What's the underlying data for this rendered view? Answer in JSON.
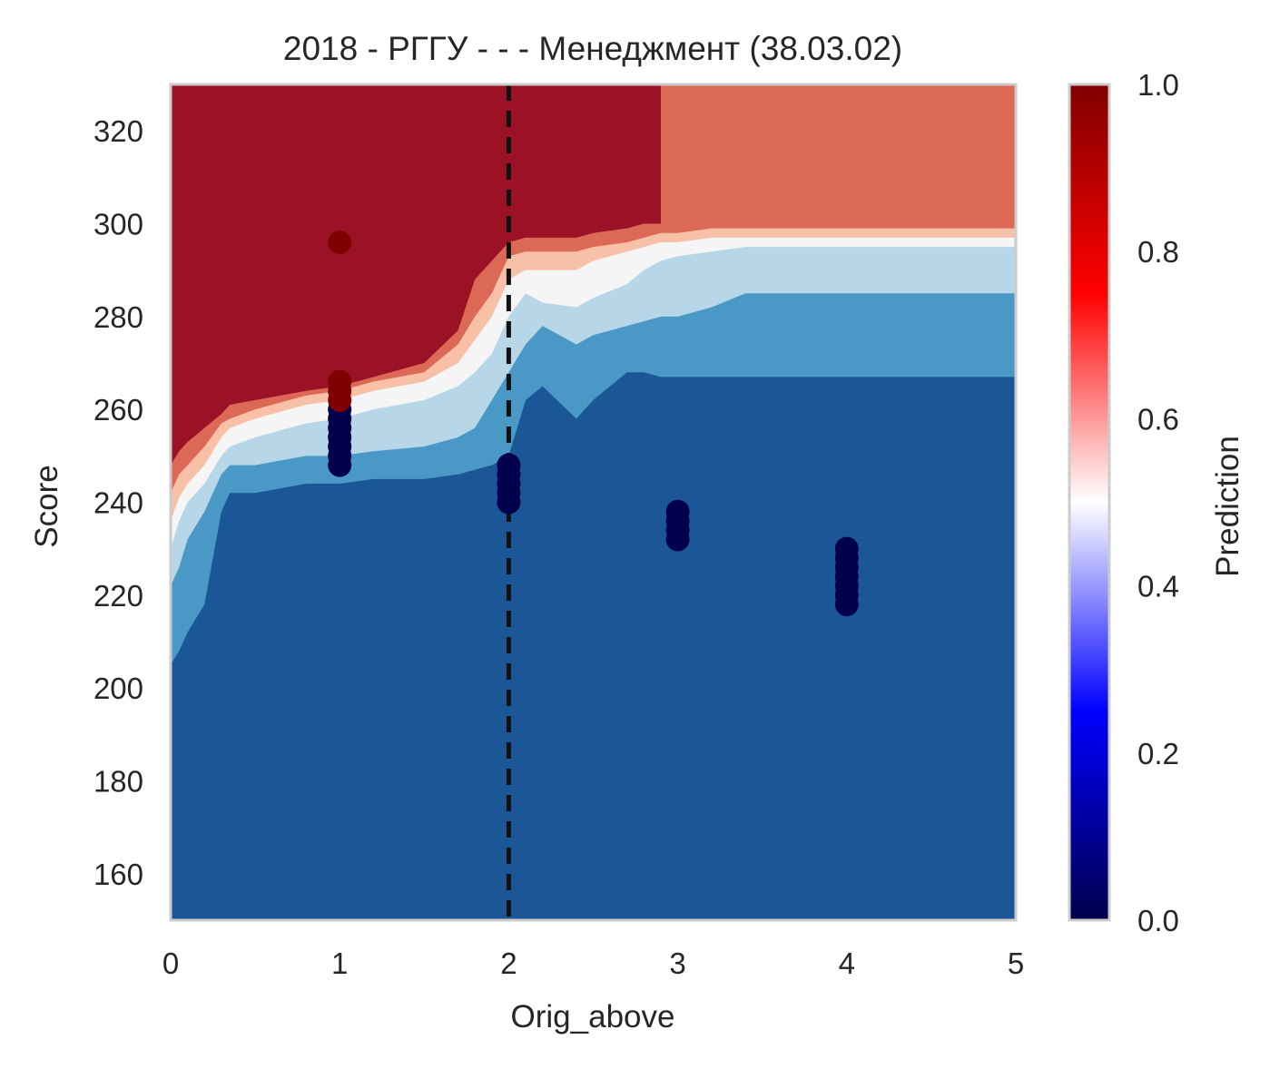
{
  "chart_data": {
    "type": "contour",
    "title": "2018 - РГГУ - - - Менеджмент (38.03.02)",
    "xlabel": "Orig_above",
    "ylabel": "Score",
    "xlim": [
      0,
      5
    ],
    "ylim": [
      150,
      330
    ],
    "x_ticks": [
      0,
      1,
      2,
      3,
      4,
      5
    ],
    "y_ticks": [
      160,
      180,
      200,
      220,
      240,
      260,
      280,
      300,
      320
    ],
    "grid": false,
    "colorbar": {
      "label": "Prediction",
      "range": [
        0,
        1
      ],
      "ticks": [
        "0.0",
        "0.2",
        "0.4",
        "0.6",
        "0.8",
        "1.0"
      ],
      "colormap": "seismic"
    },
    "cutoff_line": {
      "x": 2,
      "style": "dashed",
      "color": "#111111"
    },
    "contour_levels": [
      {
        "level": "0.0-0.15",
        "color": "#1b5796"
      },
      {
        "level": "0.15-0.3",
        "color": "#4a98c5"
      },
      {
        "level": "0.3-0.45",
        "color": "#b7d6e8"
      },
      {
        "level": "0.45-0.55",
        "color": "#f5f5f5"
      },
      {
        "level": "0.55-0.7",
        "color": "#f8c0a6"
      },
      {
        "level": "0.7-0.85",
        "color": "#dc6955"
      },
      {
        "level": "0.85-1.0",
        "color": "#9b1227"
      }
    ],
    "contour_boundaries": {
      "x": [
        0,
        0.05,
        0.1,
        0.2,
        0.3,
        0.35,
        0.5,
        0.8,
        1.0,
        1.2,
        1.5,
        1.7,
        1.8,
        1.9,
        2.0,
        2.1,
        2.2,
        2.4,
        2.5,
        2.7,
        2.8,
        2.9,
        3.0,
        3.2,
        3.4,
        3.5,
        4.0,
        4.5,
        5.0
      ],
      "b_0_15": [
        205,
        208,
        212,
        218,
        238,
        242,
        242,
        244,
        244,
        245,
        245,
        246,
        247,
        248,
        250,
        262,
        265,
        258,
        262,
        268,
        268,
        267,
        267,
        267,
        267,
        267,
        267,
        267,
        267
      ],
      "b_0_30": [
        222,
        226,
        232,
        238,
        246,
        248,
        248,
        250,
        250,
        251,
        252,
        254,
        256,
        262,
        268,
        274,
        278,
        274,
        276,
        278,
        279,
        280,
        280,
        282,
        285,
        285,
        285,
        285,
        285
      ],
      "b_0_45": [
        230,
        236,
        240,
        244,
        250,
        252,
        254,
        257,
        258,
        260,
        262,
        265,
        268,
        272,
        280,
        285,
        283,
        282,
        284,
        287,
        290,
        292,
        293,
        294,
        295,
        295,
        295,
        295,
        295
      ],
      "b_0_55": [
        236,
        241,
        244,
        248,
        254,
        256,
        258,
        261,
        262,
        264,
        266,
        270,
        275,
        280,
        288,
        290,
        290,
        290,
        292,
        294,
        295,
        296,
        296,
        297,
        297,
        297,
        297,
        297,
        297
      ],
      "b_0_70": [
        242,
        246,
        248,
        252,
        257,
        258,
        260,
        263,
        264,
        266,
        268,
        274,
        280,
        285,
        293,
        294,
        294,
        294,
        295,
        296,
        297,
        298,
        298,
        299,
        299,
        299,
        299,
        299,
        299
      ],
      "b_0_85": [
        248,
        251,
        253,
        256,
        259,
        261,
        262,
        264,
        265,
        267,
        270,
        277,
        288,
        292,
        296,
        297,
        297,
        297,
        298,
        299,
        300,
        300,
        330,
        330,
        330,
        330,
        330,
        330,
        330
      ]
    },
    "series": [
      {
        "name": "",
        "x": 1,
        "y": [
          248,
          250,
          252,
          254,
          256,
          258,
          260
        ],
        "color": "#00004c",
        "prediction": 0
      },
      {
        "name": "",
        "x": 1,
        "y": [
          262,
          264,
          266
        ],
        "color": "#800000",
        "prediction": 1
      },
      {
        "name": "",
        "x": 1,
        "y": [
          296
        ],
        "color": "#800000",
        "prediction": 1
      },
      {
        "name": "",
        "x": 2,
        "y": [
          240,
          242,
          244,
          246,
          248
        ],
        "color": "#00004c",
        "prediction": 0
      },
      {
        "name": "",
        "x": 3,
        "y": [
          232,
          234,
          236,
          238
        ],
        "color": "#00004c",
        "prediction": 0
      },
      {
        "name": "",
        "x": 4,
        "y": [
          218,
          220,
          222,
          224,
          226,
          228,
          230
        ],
        "color": "#00004c",
        "prediction": 0
      }
    ]
  }
}
